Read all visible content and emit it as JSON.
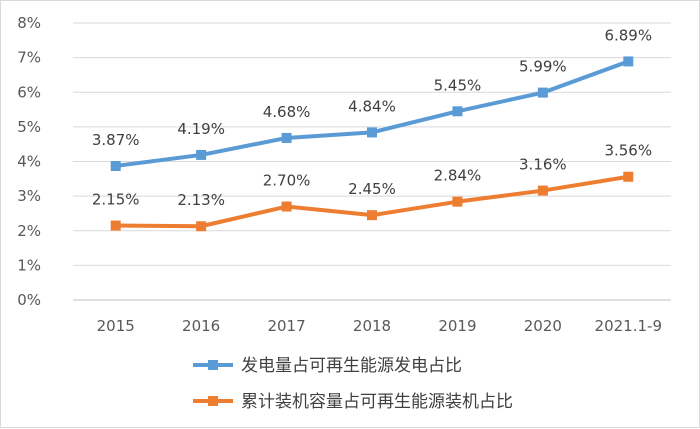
{
  "chart_data": {
    "type": "line",
    "title": "",
    "xlabel": "",
    "ylabel": "",
    "categories": [
      "2015",
      "2016",
      "2017",
      "2018",
      "2019",
      "2020",
      "2021.1-9"
    ],
    "ylim": [
      0,
      8
    ],
    "y_ticks": [
      "0%",
      "1%",
      "2%",
      "3%",
      "4%",
      "5%",
      "6%",
      "7%",
      "8%"
    ],
    "grid": true,
    "legend_position": "bottom",
    "series": [
      {
        "name": "发电量占可再生能源发电占比",
        "color": "#5B9BD5",
        "values": [
          3.87,
          4.19,
          4.68,
          4.84,
          5.45,
          5.99,
          6.89
        ],
        "labels": [
          "3.87%",
          "4.19%",
          "4.68%",
          "4.84%",
          "5.45%",
          "5.99%",
          "6.89%"
        ]
      },
      {
        "name": "累计装机容量占可再生能源装机占比",
        "color": "#ED7D31",
        "values": [
          2.15,
          2.13,
          2.7,
          2.45,
          2.84,
          3.16,
          3.56
        ],
        "labels": [
          "2.15%",
          "2.13%",
          "2.70%",
          "2.45%",
          "2.84%",
          "3.16%",
          "3.56%"
        ]
      }
    ]
  }
}
